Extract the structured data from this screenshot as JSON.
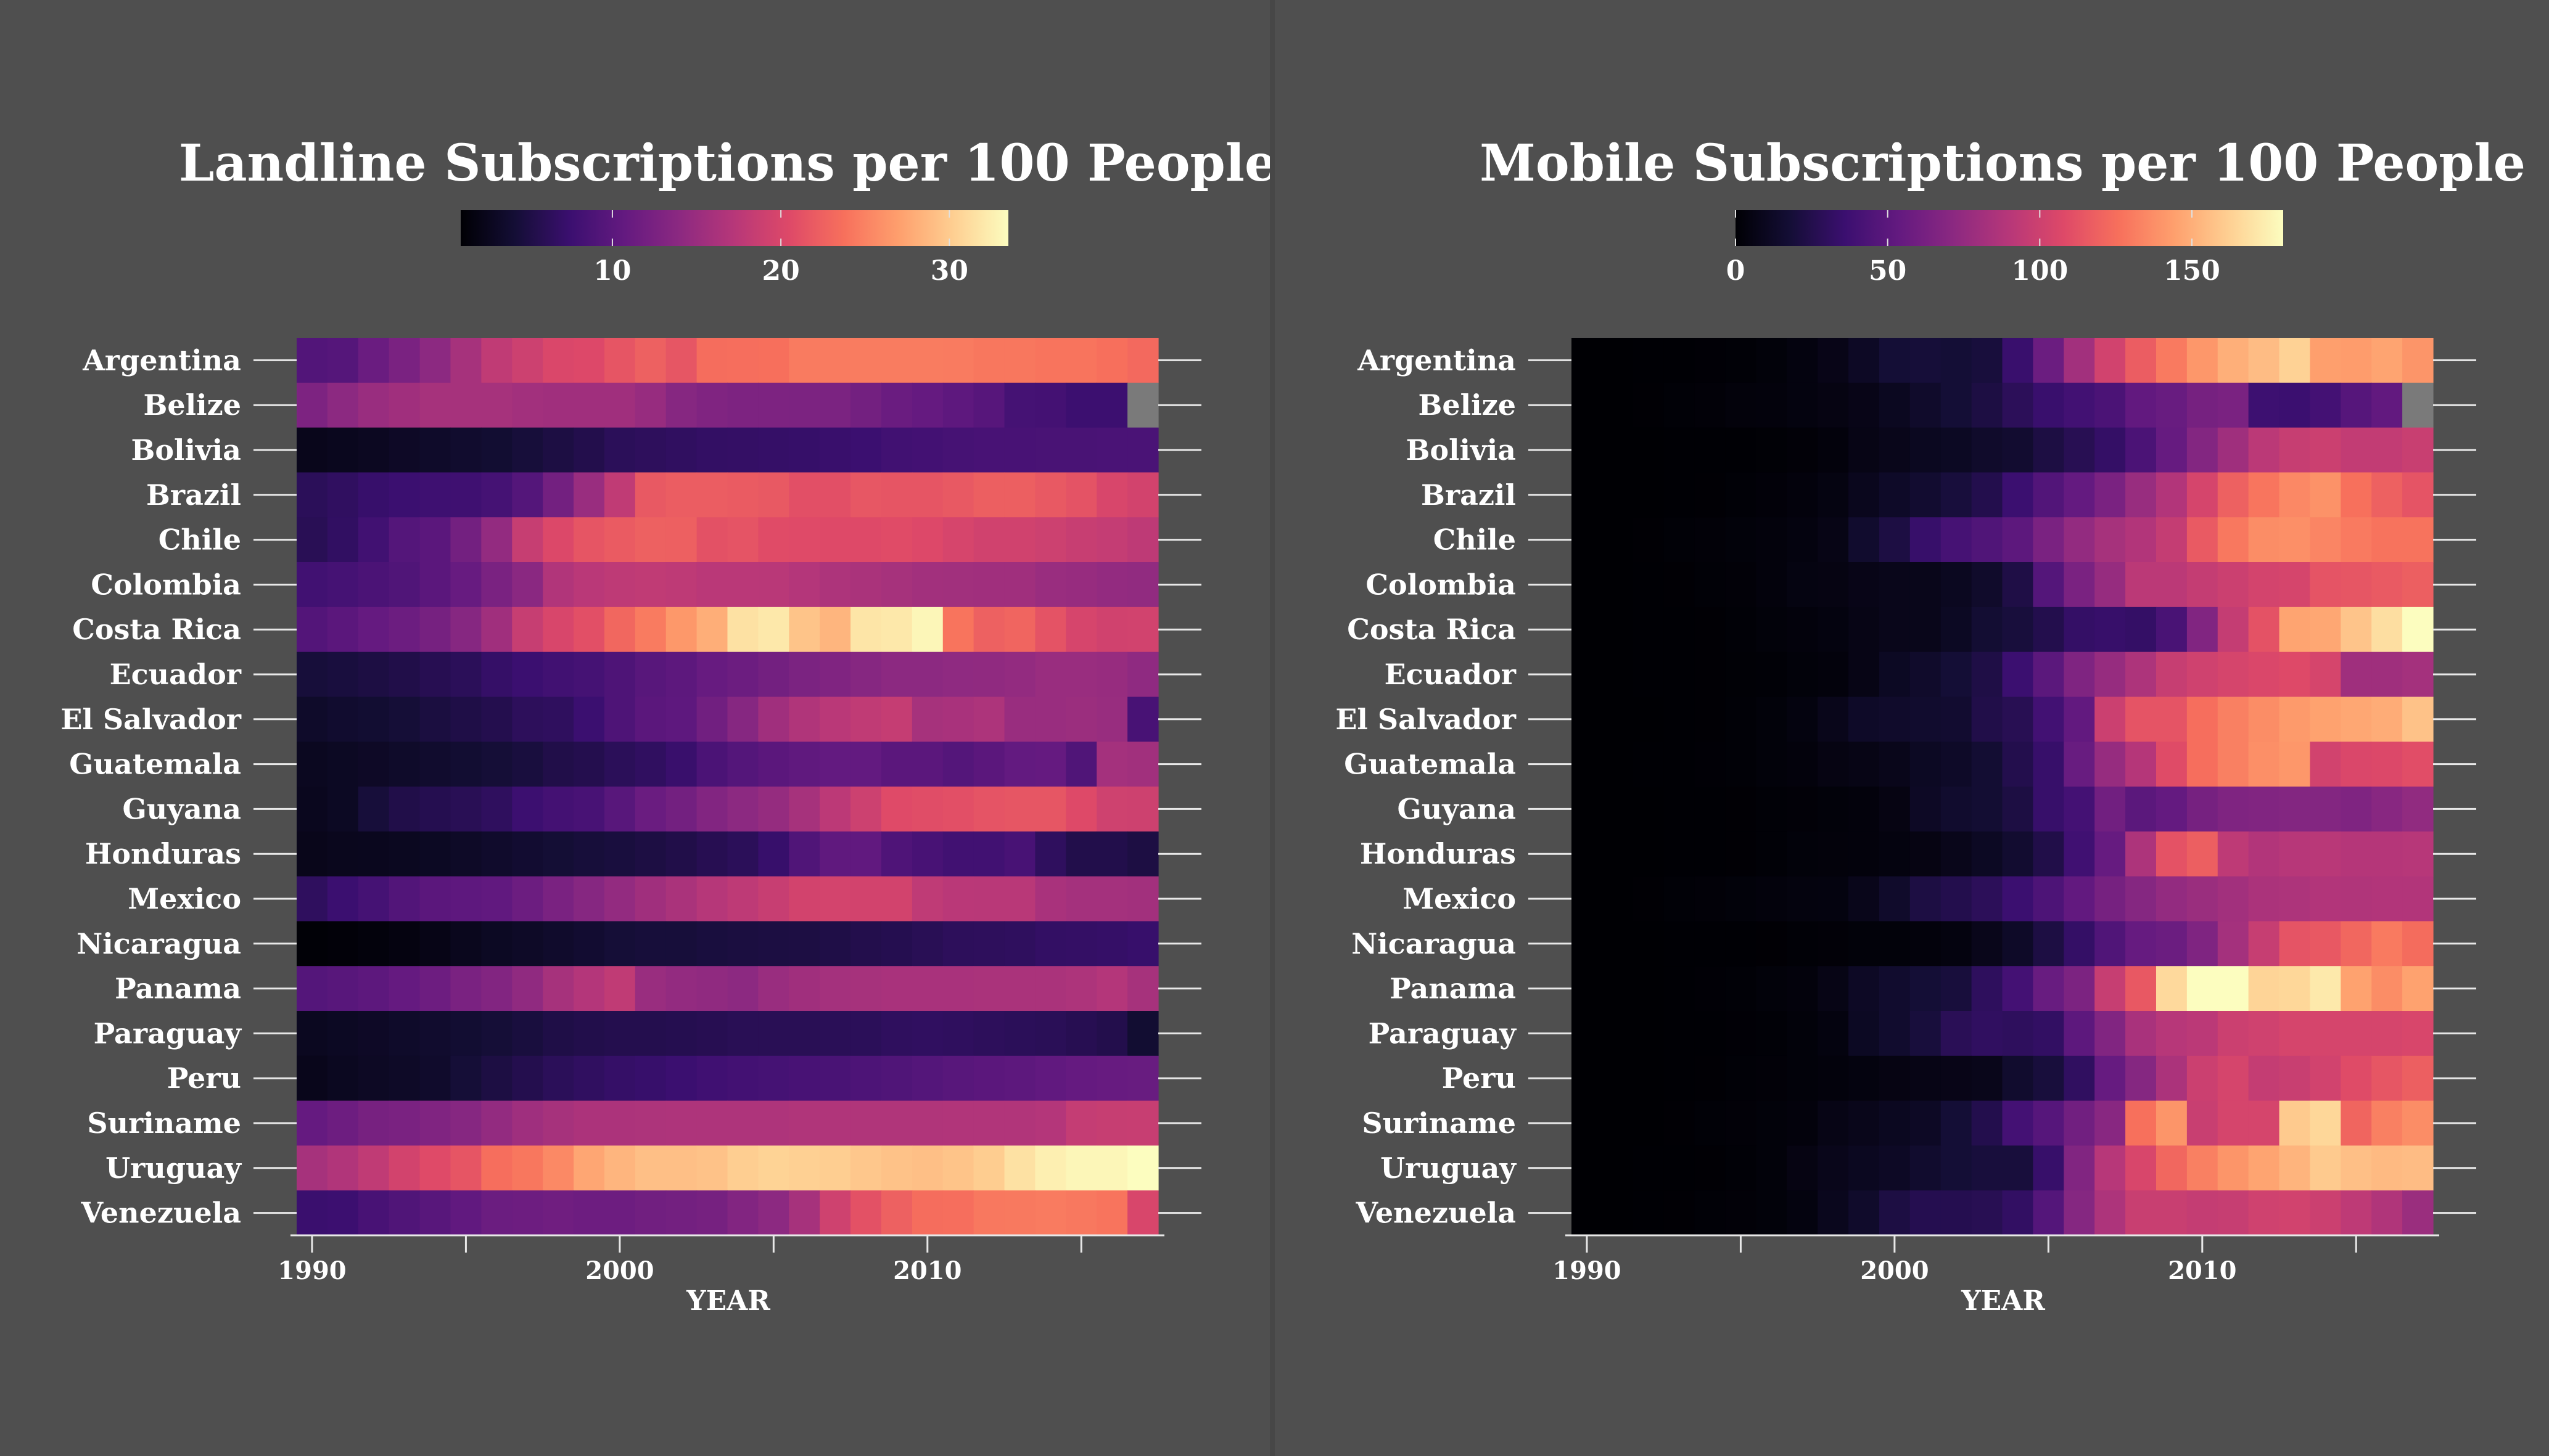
{
  "colors": {
    "background": "#4f4f4f",
    "missing": "#7a7a7a",
    "text": "#ffffff",
    "axis": "#e8e8e8"
  },
  "chart_data": [
    {
      "type": "heatmap",
      "title": "Landline Subscriptions per 100 People",
      "xlabel": "YEAR",
      "colormap": "magma",
      "color_range": [
        1,
        33.5
      ],
      "colorbar_ticks": [
        10,
        20,
        30
      ],
      "x_tick_labels": [
        1990,
        2000,
        2010
      ],
      "x": [
        1990,
        1991,
        1992,
        1993,
        1994,
        1995,
        1996,
        1997,
        1998,
        1999,
        2000,
        2001,
        2002,
        2003,
        2004,
        2005,
        2006,
        2007,
        2008,
        2009,
        2010,
        2011,
        2012,
        2013,
        2014,
        2015,
        2016,
        2017
      ],
      "y": [
        "Argentina",
        "Belize",
        "Bolivia",
        "Brazil",
        "Chile",
        "Colombia",
        "Costa Rica",
        "Ecuador",
        "El Salvador",
        "Guatemala",
        "Guyana",
        "Honduras",
        "Mexico",
        "Nicaragua",
        "Panama",
        "Paraguay",
        "Peru",
        "Suriname",
        "Uruguay",
        "Venezuela"
      ],
      "z": [
        [
          9.3,
          9.6,
          11.2,
          12.5,
          14,
          16,
          18,
          19,
          20.2,
          20.4,
          21.5,
          22.5,
          21.6,
          23.5,
          23.6,
          23.7,
          24.5,
          24.5,
          24.6,
          24.6,
          24.6,
          24.5,
          24.2,
          24.2,
          24,
          24,
          23.7,
          23.2
        ],
        [
          12.8,
          14,
          15,
          15.5,
          16,
          16,
          16,
          15.7,
          15.5,
          15.5,
          15.5,
          14.8,
          13.5,
          13,
          12.8,
          12.8,
          12.7,
          12.6,
          12,
          11.2,
          10.8,
          10.3,
          9.7,
          8.3,
          8.2,
          7.6,
          7.6,
          null
        ],
        [
          2.5,
          2.7,
          2.9,
          3.2,
          3.5,
          3.7,
          4,
          4.5,
          5,
          5.5,
          6.2,
          6.4,
          6.6,
          6.8,
          6.9,
          7,
          7.1,
          7.3,
          7.5,
          8,
          8.1,
          8.4,
          8.5,
          8.5,
          8.6,
          8.6,
          8.7,
          8.7
        ],
        [
          6.2,
          6.6,
          7.2,
          7.5,
          7.7,
          7.8,
          8.3,
          9.5,
          12,
          15,
          18,
          21.8,
          22.2,
          22.2,
          22,
          21.8,
          21,
          21,
          21.7,
          21.5,
          21.5,
          21.8,
          22.3,
          22.3,
          21.8,
          21.3,
          20,
          19.5
        ],
        [
          6,
          6.7,
          8,
          9.5,
          10,
          12,
          14.5,
          18.5,
          20.3,
          21.5,
          22,
          22.5,
          22.4,
          21.2,
          21.4,
          20.7,
          20.6,
          20.5,
          20.5,
          20.7,
          20.4,
          19.8,
          19.3,
          19.3,
          19,
          18.6,
          18.3,
          17.8
        ],
        [
          8,
          8.3,
          8.8,
          9.2,
          10,
          11,
          12.5,
          13.8,
          16.8,
          17.5,
          17.8,
          18,
          17.8,
          17.5,
          17.5,
          17.4,
          17,
          16.5,
          16.3,
          16,
          15.7,
          15.6,
          15.5,
          15.5,
          15,
          14.8,
          14.5,
          14.4
        ],
        [
          9.4,
          10,
          10.8,
          11.4,
          12.2,
          13.5,
          15.5,
          18.5,
          20,
          21,
          23,
          24.5,
          26.5,
          28,
          31.5,
          32,
          29.5,
          28.5,
          31.8,
          32,
          33,
          24,
          22.5,
          22.8,
          21.3,
          19.8,
          19.3,
          19.4
        ],
        [
          4.5,
          4.7,
          5,
          5.3,
          5.8,
          6.2,
          7,
          7.5,
          8,
          8.3,
          9,
          9.8,
          10.2,
          11,
          11.4,
          12,
          12.6,
          13,
          13.5,
          14,
          14,
          14.2,
          14.3,
          14.5,
          15,
          15,
          14.8,
          14.2
        ],
        [
          3.5,
          3.8,
          4,
          4.3,
          4.8,
          5.2,
          5.6,
          6.3,
          6.5,
          7.5,
          9,
          10,
          10.3,
          11.8,
          13.5,
          15.5,
          16.7,
          17.5,
          18,
          18.4,
          16,
          16.2,
          16.5,
          15,
          15,
          15.1,
          14.9,
          8.5
        ],
        [
          2.8,
          3,
          3.2,
          3.5,
          3.7,
          4,
          4.3,
          4.7,
          5.3,
          5.6,
          6.2,
          6.6,
          7.3,
          8.8,
          9.5,
          10,
          10.4,
          10.7,
          10.7,
          10,
          10,
          9.5,
          10,
          10.7,
          10.8,
          9.2,
          15.8,
          15.6
        ],
        [
          2.7,
          3,
          4.5,
          5.3,
          5.7,
          6,
          6.5,
          7.6,
          8.2,
          8.5,
          9.8,
          11.2,
          12,
          13.2,
          14,
          14.7,
          16,
          17.7,
          19,
          20.6,
          20.8,
          21,
          21.4,
          21.6,
          21.6,
          20.5,
          19.2,
          19.1
        ],
        [
          2.4,
          2.6,
          2.7,
          2.8,
          3,
          3.3,
          3.6,
          3.9,
          4.2,
          4.5,
          4.7,
          5,
          5.3,
          5.8,
          6.2,
          7.2,
          9.2,
          10.4,
          10.5,
          9.1,
          8.5,
          8,
          8,
          8.5,
          6.5,
          5.4,
          5.4,
          5
        ],
        [
          6.5,
          7.5,
          8.3,
          9.3,
          10,
          10.3,
          10.5,
          11.4,
          12.5,
          13.5,
          14.5,
          15.5,
          16.3,
          17.2,
          17.8,
          18.6,
          19.5,
          19.6,
          19.5,
          19.5,
          17.9,
          17.5,
          17.4,
          17.4,
          16.2,
          15.8,
          15.8,
          15.7
        ],
        [
          1.2,
          1.3,
          1.5,
          1.8,
          2.2,
          2.6,
          3,
          3.3,
          3.6,
          3.9,
          4.3,
          4.5,
          4.5,
          4.7,
          4.8,
          4.9,
          5,
          5.2,
          5.5,
          5.7,
          6,
          6.3,
          6.4,
          6.5,
          6.8,
          6.9,
          7,
          7.2
        ],
        [
          9.5,
          9.8,
          10.2,
          10.8,
          11.5,
          12.5,
          13.2,
          14.3,
          16,
          17,
          18,
          15,
          14.5,
          14.3,
          14,
          15,
          15.5,
          15.8,
          16,
          16.2,
          16.2,
          16.2,
          16.3,
          16.3,
          16.3,
          16.5,
          17,
          16
        ],
        [
          2.8,
          3,
          3.2,
          3.5,
          3.7,
          4,
          4.3,
          4.7,
          5.2,
          5.4,
          5.6,
          5.6,
          5.7,
          5.8,
          6,
          6,
          6,
          6.1,
          6.2,
          6.5,
          6.6,
          6.5,
          6.3,
          6.2,
          6.1,
          5.8,
          5.5,
          4
        ],
        [
          2.5,
          2.8,
          3.1,
          3.3,
          3.6,
          4.3,
          5,
          5.6,
          6.2,
          6.6,
          7,
          7.2,
          7.5,
          7.9,
          8.1,
          8.3,
          8.5,
          8.6,
          8.9,
          9.2,
          9.5,
          9.8,
          10,
          10.2,
          10.5,
          10.8,
          11,
          11.1
        ],
        [
          10.8,
          11.5,
          12.3,
          12.5,
          13,
          13.5,
          14.5,
          15.4,
          16,
          16.4,
          16.4,
          16.5,
          16.6,
          16.6,
          16.6,
          16.6,
          16.7,
          16.7,
          16.7,
          16.7,
          16.7,
          16.8,
          16.8,
          16.8,
          17,
          18.3,
          18.5,
          18.6
        ],
        [
          16,
          16.8,
          18,
          19.5,
          20.6,
          21.5,
          23.6,
          24.2,
          25.5,
          27.5,
          28.5,
          29.2,
          29.2,
          29.4,
          30.2,
          30.5,
          30.3,
          30.2,
          29.7,
          29.4,
          29.2,
          29.5,
          30.1,
          31.5,
          32.5,
          33,
          33,
          33.5
        ],
        [
          7.4,
          7.6,
          8.5,
          9.2,
          9.8,
          10.5,
          11.3,
          11.5,
          11.7,
          11.5,
          11.5,
          11.8,
          12,
          12.2,
          13.2,
          14,
          16,
          19.2,
          21.2,
          22.5,
          23.5,
          23.6,
          24.3,
          24.4,
          24.5,
          24.3,
          24,
          20
        ]
      ]
    },
    {
      "type": "heatmap",
      "title": "Mobile Subscriptions per 100 People",
      "xlabel": "YEAR",
      "colormap": "magma",
      "color_range": [
        0,
        180
      ],
      "colorbar_ticks": [
        0,
        50,
        100,
        150
      ],
      "x_tick_labels": [
        1990,
        2000,
        2010
      ],
      "x": [
        1990,
        1991,
        1992,
        1993,
        1994,
        1995,
        1996,
        1997,
        1998,
        1999,
        2000,
        2001,
        2002,
        2003,
        2004,
        2005,
        2006,
        2007,
        2008,
        2009,
        2010,
        2011,
        2012,
        2013,
        2014,
        2015,
        2016,
        2017
      ],
      "y": [
        "Argentina",
        "Belize",
        "Bolivia",
        "Brazil",
        "Chile",
        "Colombia",
        "Costa Rica",
        "Ecuador",
        "El Salvador",
        "Guatemala",
        "Guyana",
        "Honduras",
        "Mexico",
        "Nicaragua",
        "Panama",
        "Paraguay",
        "Peru",
        "Suriname",
        "Uruguay",
        "Venezuela"
      ],
      "z": [
        [
          0,
          0,
          0.2,
          0.3,
          0.6,
          1,
          2,
          4,
          7,
          12,
          18,
          19,
          18,
          20,
          35,
          57,
          81,
          102,
          117,
          130,
          141,
          150,
          155,
          163,
          144,
          143,
          146,
          140
        ],
        [
          0,
          0,
          0.5,
          1,
          1.5,
          2.5,
          3,
          4,
          5,
          7,
          10,
          14,
          18,
          22,
          29,
          35,
          39,
          43,
          53,
          56,
          62,
          64,
          37,
          36,
          40,
          48,
          53,
          null
        ],
        [
          0,
          0,
          0.1,
          0.2,
          0.3,
          0.4,
          0.8,
          1.5,
          3,
          6,
          8,
          10,
          11,
          14,
          16,
          22,
          27,
          33,
          43,
          55,
          68,
          80,
          92,
          97,
          99,
          95,
          95,
          98
        ],
        [
          0,
          0,
          0.1,
          0.2,
          0.5,
          1,
          1.8,
          3,
          4.5,
          9,
          13,
          16,
          20,
          25,
          36,
          46,
          54,
          64,
          77,
          88,
          104,
          119,
          128,
          135,
          139,
          126,
          119,
          113
        ],
        [
          0,
          0,
          0.5,
          1,
          1.5,
          2,
          3,
          4,
          6,
          15,
          22,
          34,
          41,
          45,
          51,
          64,
          75,
          83,
          88,
          96,
          116,
          129,
          137,
          138,
          134,
          130,
          127,
          127
        ],
        [
          0,
          0,
          0.2,
          0.5,
          1,
          1.5,
          3,
          4.5,
          5,
          7,
          8,
          8,
          10,
          14,
          23,
          47,
          64,
          76,
          92,
          92,
          96,
          99,
          103,
          104,
          113,
          114,
          116,
          118
        ],
        [
          0,
          0.1,
          0.2,
          0.3,
          0.5,
          1,
          2,
          3,
          4,
          6,
          8,
          8,
          11,
          17,
          20,
          25,
          33,
          34,
          33,
          42,
          67,
          96,
          112,
          146,
          147,
          158,
          168,
          180
        ],
        [
          0,
          0,
          0.2,
          0.4,
          0.5,
          0.8,
          1,
          2,
          3,
          6,
          11,
          14,
          18,
          23,
          36,
          50,
          66,
          76,
          86,
          97,
          101,
          104,
          106,
          108,
          104,
          80,
          80,
          82
        ],
        [
          0,
          0,
          0.1,
          0.3,
          0.5,
          1,
          2,
          4,
          8,
          13,
          14,
          15,
          16,
          24,
          27,
          39,
          53,
          99,
          113,
          113,
          125,
          132,
          137,
          142,
          145,
          147,
          149,
          157
        ],
        [
          0,
          0,
          0.2,
          0.3,
          0.6,
          1,
          2,
          3,
          5,
          6,
          8,
          11,
          13,
          17,
          25,
          34,
          56,
          76,
          89,
          109,
          125,
          132,
          138,
          141,
          102,
          106,
          107,
          110
        ],
        [
          0,
          0,
          0.1,
          0.2,
          0.3,
          0.5,
          1,
          1.5,
          2,
          3,
          5,
          12,
          15,
          17,
          22,
          34,
          40,
          60,
          50,
          54,
          62,
          66,
          67,
          68,
          68,
          66,
          70,
          74
        ],
        [
          0,
          0,
          0.1,
          0.2,
          0.3,
          0.5,
          1,
          2,
          2.5,
          3,
          4,
          5,
          8,
          11,
          16,
          24,
          38,
          55,
          86,
          112,
          118,
          93,
          88,
          90,
          91,
          89,
          89,
          90
        ],
        [
          0,
          0,
          0.5,
          1,
          1.5,
          2,
          3,
          3.5,
          4,
          8,
          14,
          22,
          25,
          29,
          36,
          44,
          53,
          62,
          69,
          75,
          78,
          81,
          85,
          86,
          88,
          87,
          88,
          88
        ],
        [
          0,
          0,
          0.1,
          0.2,
          0.3,
          0.4,
          0.5,
          1,
          1.5,
          2,
          2,
          3,
          4,
          8,
          13,
          22,
          33,
          45,
          55,
          57,
          66,
          82,
          97,
          113,
          115,
          122,
          130,
          124
        ],
        [
          0,
          0,
          0.1,
          0.3,
          0.6,
          1,
          2,
          3,
          6,
          12,
          15,
          18,
          20,
          30,
          40,
          56,
          65,
          97,
          115,
          166,
          185,
          190,
          164,
          165,
          172,
          145,
          137,
          145
        ],
        [
          0,
          0,
          0.1,
          0.2,
          0.4,
          0.6,
          1,
          2,
          4,
          11,
          15,
          20,
          28,
          31,
          30,
          32,
          51,
          67,
          84,
          90,
          92,
          99,
          101,
          104,
          104,
          104,
          104,
          105
        ],
        [
          0,
          0,
          0.1,
          0.2,
          0.5,
          1,
          1.5,
          2,
          3,
          4,
          5,
          6,
          7,
          8,
          15,
          20,
          31,
          55,
          69,
          85,
          99,
          104,
          96,
          98,
          102,
          109,
          114,
          118
        ],
        [
          0,
          0,
          0.1,
          0.5,
          1,
          1.5,
          2,
          3,
          6,
          8,
          10,
          12,
          18,
          25,
          40,
          48,
          60,
          70,
          126,
          140,
          98,
          104,
          104,
          160,
          165,
          121,
          132,
          137
        ],
        [
          0,
          0,
          0.2,
          0.3,
          0.5,
          1,
          2,
          5,
          8,
          10,
          12,
          15,
          18,
          20,
          20,
          34,
          67,
          90,
          105,
          122,
          132,
          140,
          146,
          152,
          160,
          156,
          154,
          155
        ],
        [
          0,
          0,
          0.2,
          0.5,
          1,
          1.5,
          2,
          4,
          9,
          14,
          22,
          26,
          26,
          27,
          32,
          47,
          69,
          86,
          98,
          98,
          96,
          97,
          101,
          102,
          99,
          93,
          87,
          78
        ]
      ]
    }
  ]
}
